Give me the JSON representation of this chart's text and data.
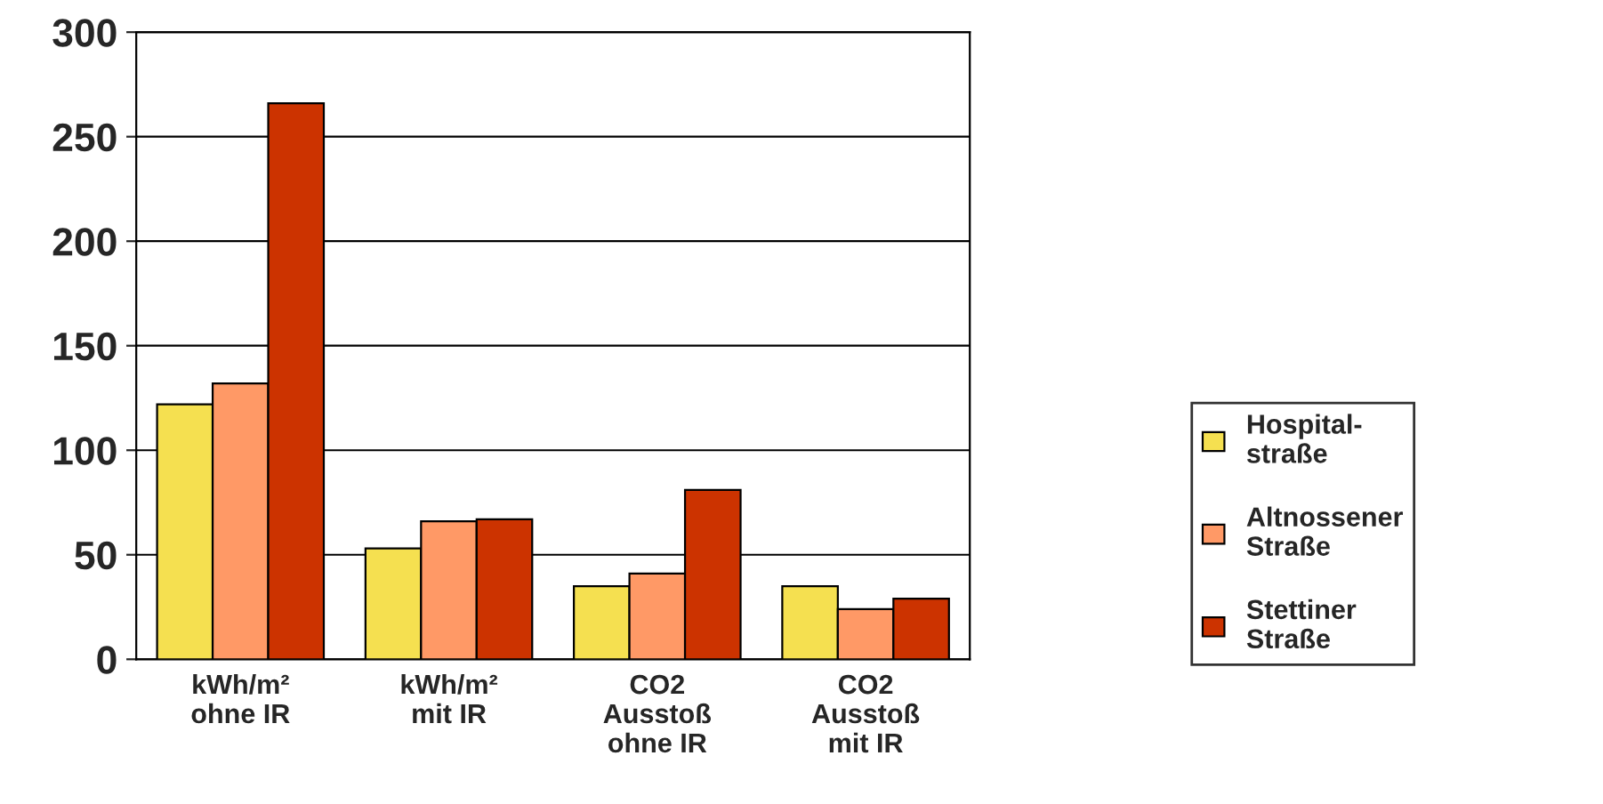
{
  "chart_data": {
    "type": "bar",
    "categories": [
      "kWh/m²\nohne IR",
      "kWh/m²\nmit IR",
      "CO2\nAusstoß\nohne IR",
      "CO2\nAusstoß\nmit IR"
    ],
    "series": [
      {
        "name": "Hospital-\nstraße",
        "color": "#f5e050",
        "values": [
          122,
          53,
          35,
          35
        ]
      },
      {
        "name": "Altnossener\nStraße",
        "color": "#ff9966",
        "values": [
          132,
          66,
          41,
          24
        ]
      },
      {
        "name": "Stettiner\nStraße",
        "color": "#cc3300",
        "values": [
          266,
          67,
          81,
          29
        ]
      }
    ],
    "ylim": [
      0,
      300
    ],
    "yticks": [
      0,
      50,
      100,
      150,
      200,
      250,
      300
    ],
    "grid": "y",
    "legend": "right"
  }
}
